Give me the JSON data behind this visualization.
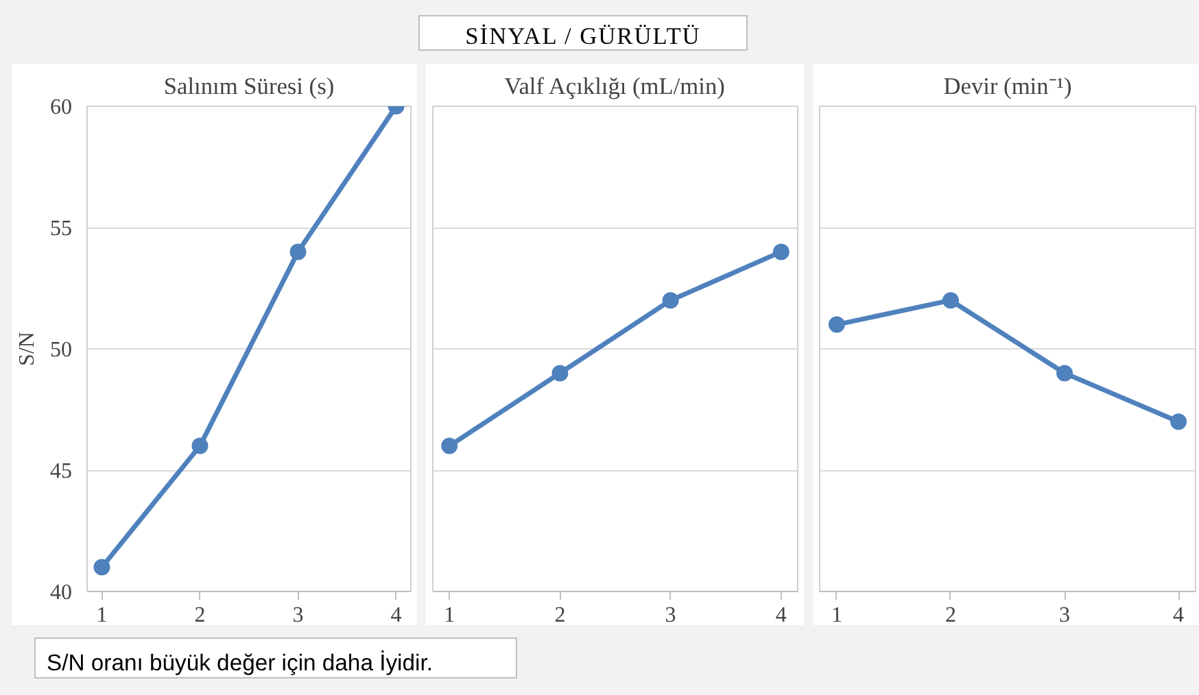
{
  "chart_data": [
    {
      "type": "line",
      "title": "Salınım Süresi (s)",
      "ylabel": "S/N",
      "x": [
        1,
        2,
        3,
        4
      ],
      "xlim": [
        0.85,
        4.15
      ],
      "xticks": [
        1,
        2,
        3,
        4
      ],
      "ylim": [
        40,
        60
      ],
      "yticks": [
        40,
        45,
        50,
        55,
        60
      ],
      "grid": "y",
      "marker": "circle",
      "line_style": "solid",
      "series": [
        {
          "color": "#4f81bd",
          "values": [
            41,
            46,
            54,
            60
          ]
        }
      ],
      "annotations": [
        "SİNYAL / GÜRÜLTÜ",
        "S/N oranı büyük değer için daha İyidir."
      ]
    },
    {
      "type": "line",
      "title": "Valf Açıklığı (mL/min)",
      "x": [
        1,
        2,
        3,
        4
      ],
      "xlim": [
        0.85,
        4.15
      ],
      "xticks": [
        1,
        2,
        3,
        4
      ],
      "ylim": [
        40,
        60
      ],
      "yticks": [
        40,
        45,
        50,
        55,
        60
      ],
      "tick_labels": "x",
      "grid": "y",
      "marker": "circle",
      "line_style": "solid",
      "series": [
        {
          "color": "#4f81bd",
          "values": [
            46,
            49,
            52,
            54
          ]
        }
      ]
    },
    {
      "type": "line",
      "title": "Devir (min⁻¹)",
      "x": [
        1,
        2,
        3,
        4
      ],
      "xlim": [
        0.85,
        4.15
      ],
      "xticks": [
        1,
        2,
        3,
        4
      ],
      "ylim": [
        40,
        60
      ],
      "yticks": [
        40,
        45,
        50,
        55,
        60
      ],
      "tick_labels": "x",
      "grid": "y",
      "marker": "circle",
      "line_style": "solid",
      "series": [
        {
          "color": "#4f81bd",
          "values": [
            51,
            52,
            49,
            47
          ]
        }
      ]
    }
  ]
}
